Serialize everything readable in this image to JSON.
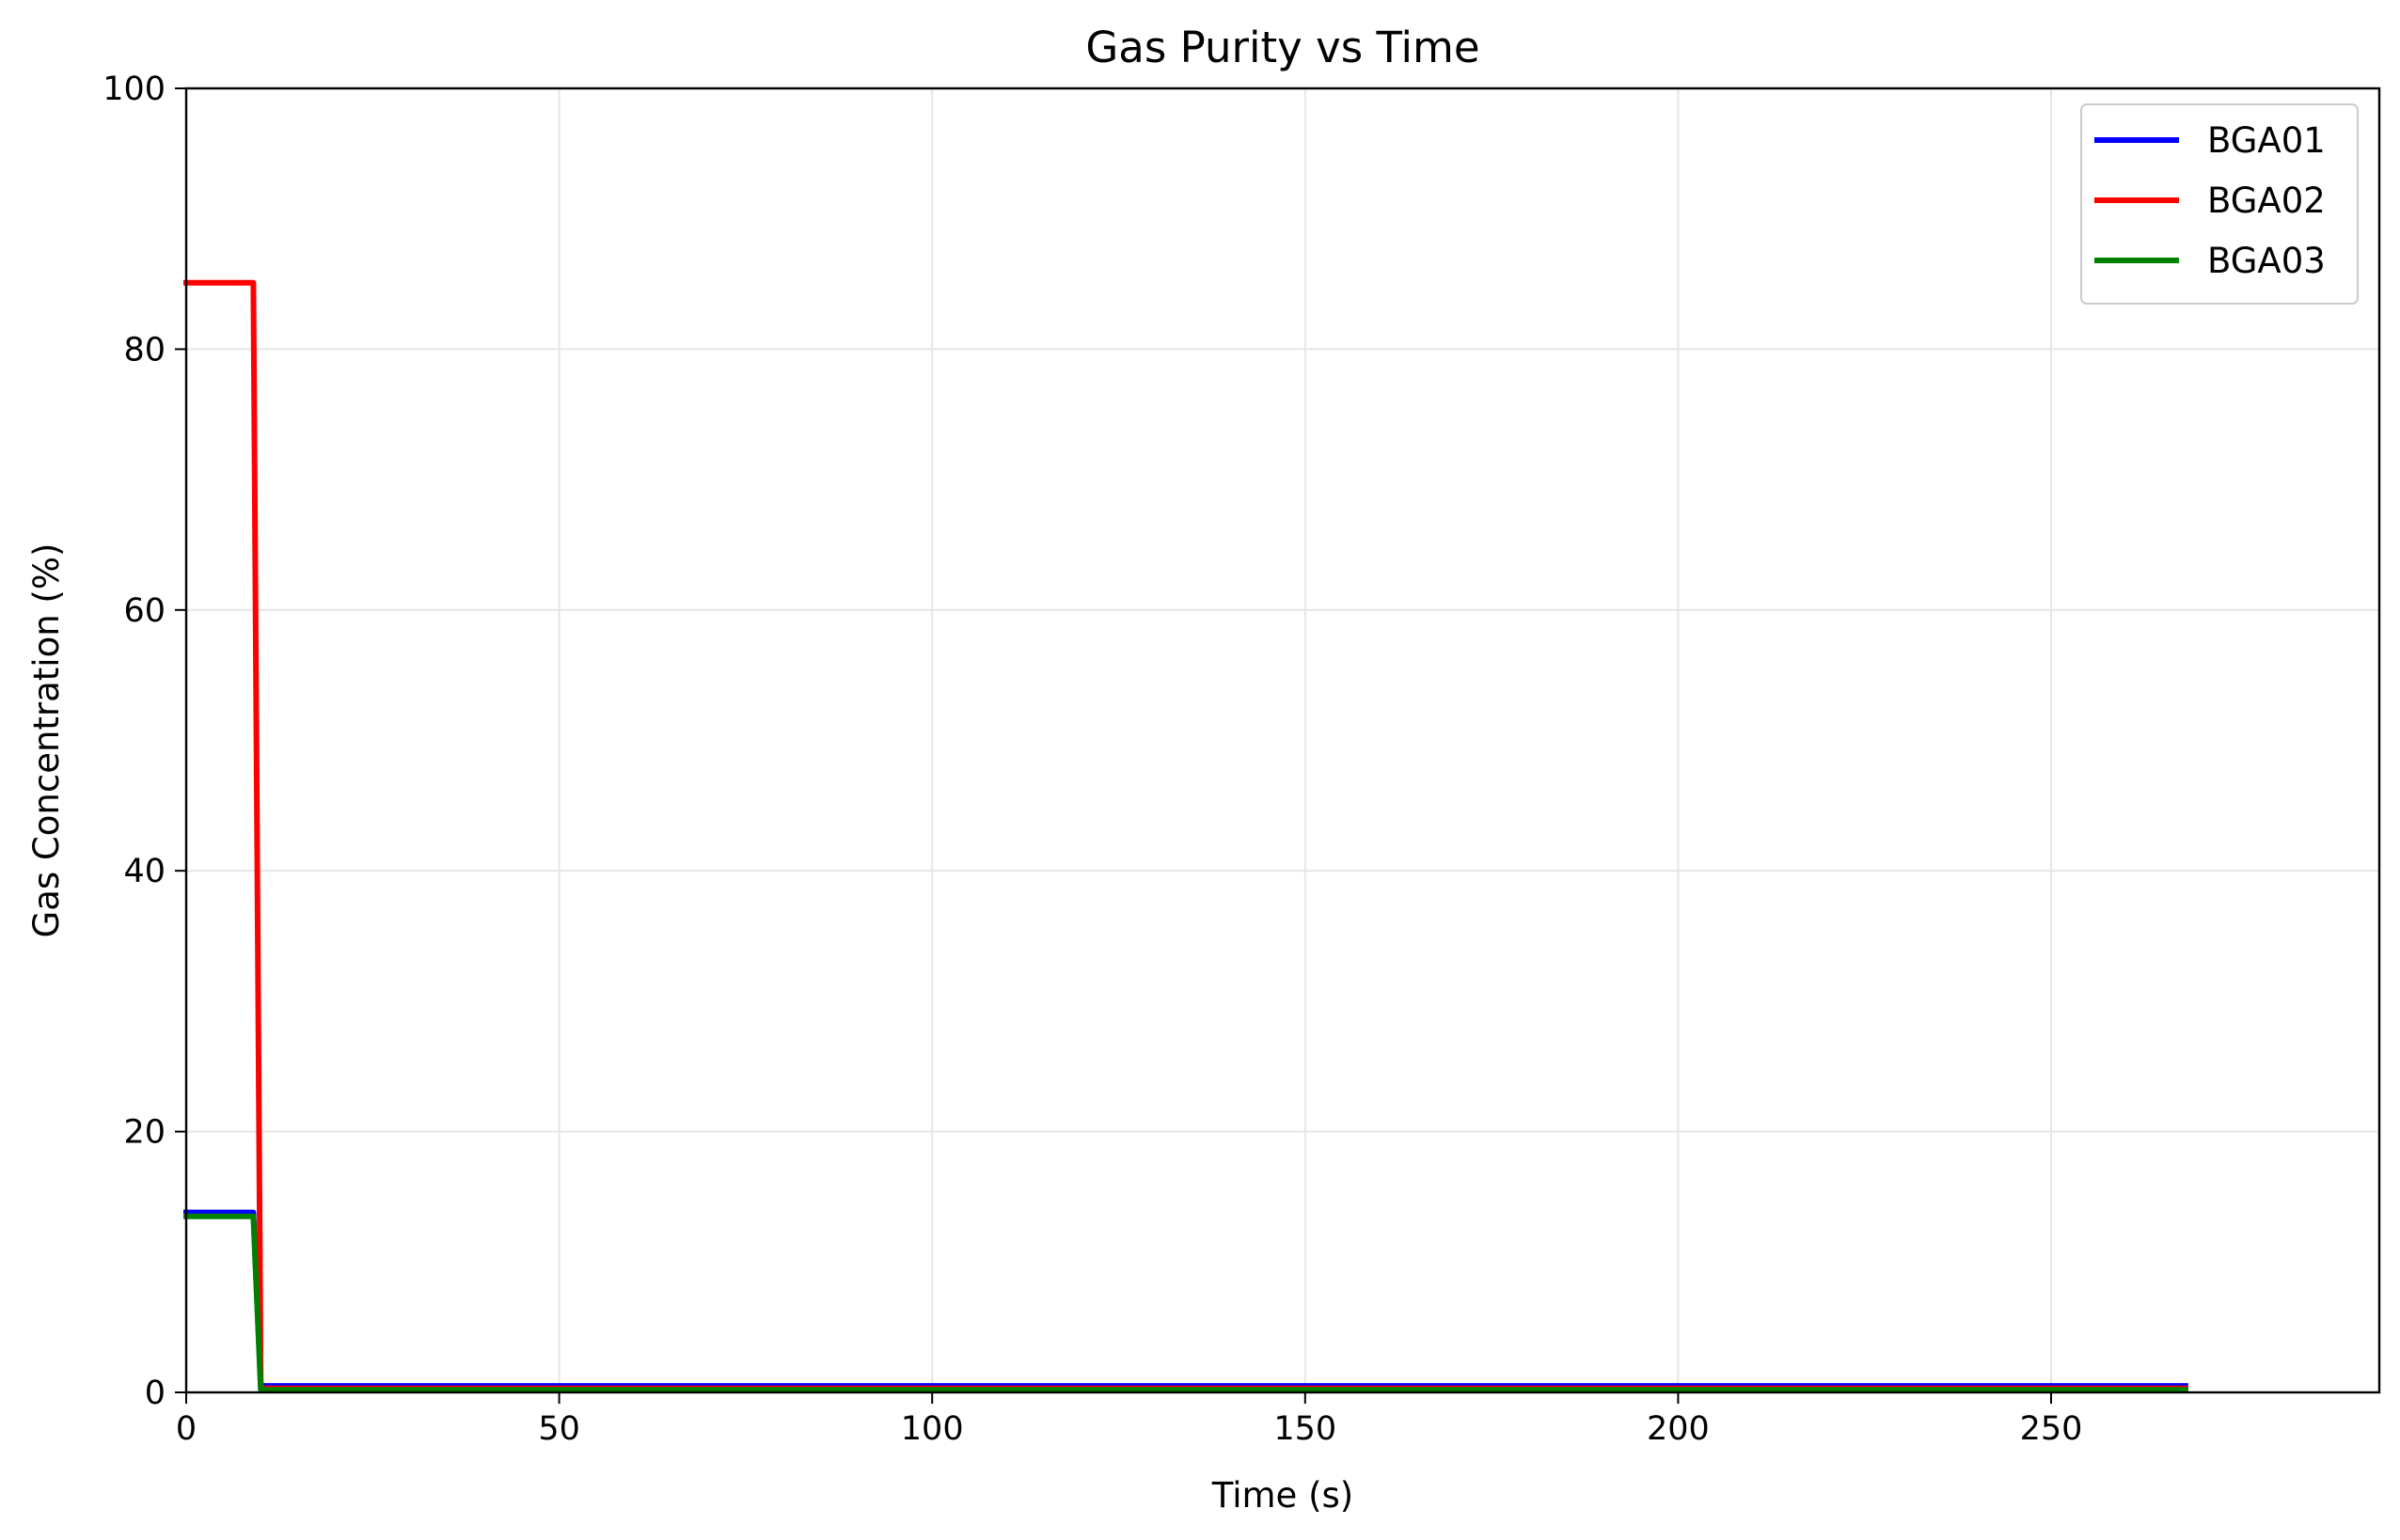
{
  "chart_data": {
    "type": "line",
    "title": "Gas Purity vs Time",
    "xlabel": "Time (s)",
    "ylabel": "Gas Concentration (%)",
    "xlim": [
      0,
      294
    ],
    "ylim": [
      0,
      100
    ],
    "xticks": [
      0,
      50,
      100,
      150,
      200,
      250
    ],
    "yticks": [
      0,
      20,
      40,
      60,
      80,
      100
    ],
    "grid": true,
    "legend_position": "top-right",
    "series": [
      {
        "name": "BGA01",
        "color": "#0000ff",
        "x": [
          0,
          9,
          10,
          268
        ],
        "y": [
          13.8,
          13.8,
          0.5,
          0.5
        ]
      },
      {
        "name": "BGA02",
        "color": "#ff0000",
        "x": [
          0,
          9,
          10,
          268
        ],
        "y": [
          85.1,
          85.1,
          0.3,
          0.3
        ]
      },
      {
        "name": "BGA03",
        "color": "#008000",
        "x": [
          0,
          9,
          10,
          268
        ],
        "y": [
          13.5,
          13.5,
          0.2,
          0.2
        ]
      }
    ]
  }
}
